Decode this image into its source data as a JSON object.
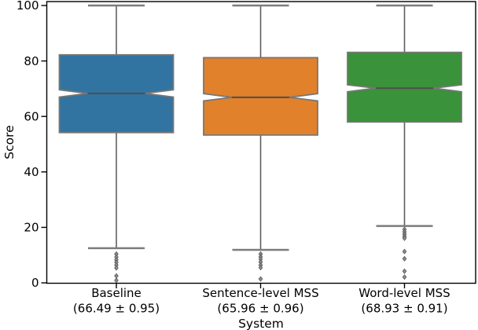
{
  "chart_data": {
    "type": "boxplot",
    "notched": true,
    "title": "",
    "xlabel": "System",
    "ylabel": "Score",
    "ylim": [
      0,
      101.5
    ],
    "yticks": [
      0,
      20,
      40,
      60,
      80,
      100
    ],
    "background": "#ffffff",
    "colors": {
      "spine": "#000000",
      "box_edge": "#767676",
      "whisker": "#5f5f5f",
      "cap": "#7c7c7c",
      "median": "#4e4e4e",
      "flier_fill": "#8f8f8f",
      "flier_edge": "#565656"
    },
    "groups": [
      {
        "label": "Baseline",
        "sublabel": "(66.49 ± 0.95)",
        "color": "#3274a1",
        "stats": {
          "whisker_low": 12.5,
          "q1": 54.2,
          "median": 68.3,
          "q3": 82.2,
          "whisker_high": 100,
          "notch_low": 67.0,
          "notch_high": 69.6
        },
        "outliers": [
          10.4,
          9.3,
          8.3,
          7.4,
          6.4,
          5.4,
          2.5,
          0.9
        ]
      },
      {
        "label": "Sentence-level MSS",
        "sublabel": "(65.96 ± 0.96)",
        "color": "#e1812c",
        "stats": {
          "whisker_low": 11.9,
          "q1": 53.3,
          "median": 66.9,
          "q3": 81.2,
          "whisker_high": 100,
          "notch_low": 65.6,
          "notch_high": 68.2
        },
        "outliers": [
          10.4,
          9.4,
          8.5,
          7.5,
          6.4,
          5.5,
          1.4
        ]
      },
      {
        "label": "Word-level MSS",
        "sublabel": "(68.93 ± 0.91)",
        "color": "#3a923a",
        "stats": {
          "whisker_low": 20.5,
          "q1": 58.0,
          "median": 70.2,
          "q3": 83.1,
          "whisker_high": 100,
          "notch_low": 68.9,
          "notch_high": 71.4
        },
        "outliers": [
          19.3,
          18.4,
          17.6,
          16.8,
          16.1,
          11.3,
          8.7,
          4.2,
          2.1
        ]
      }
    ]
  }
}
